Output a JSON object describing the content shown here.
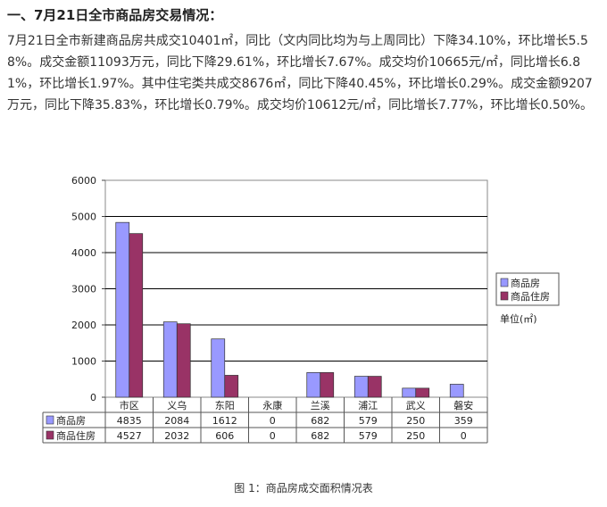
{
  "section": {
    "heading": "一、7月21日全市商品房交易情况：",
    "paragraph": "7月21日全市新建商品房共成交10401㎡，同比（文内同比均为与上周同比）下降34.10%，环比增长5.58%。成交金额11093万元，同比下降29.61%，环比增长7.67%。成交均价10665元/㎡，同比增长6.81%，环比增长1.97%。其中住宅类共成交8676㎡，同比下降40.45%，环比增长0.29%。成交金额9207万元，同比下降35.83%，环比增长0.79%。成交均价10612元/㎡，同比增长7.77%，环比增长0.50%。"
  },
  "chart_data": {
    "type": "bar",
    "categories": [
      "市区",
      "义乌",
      "东阳",
      "永康",
      "兰溪",
      "浦江",
      "武义",
      "磐安"
    ],
    "series": [
      {
        "name": "商品房",
        "values": [
          4835,
          2084,
          1612,
          0,
          682,
          579,
          250,
          359
        ],
        "color": "#9999ff"
      },
      {
        "name": "商品住房",
        "values": [
          4527,
          2032,
          606,
          0,
          682,
          579,
          250,
          0
        ],
        "color": "#993366"
      }
    ],
    "ylim": [
      0,
      6000
    ],
    "yticks": [
      0,
      1000,
      2000,
      3000,
      4000,
      5000,
      6000
    ],
    "unit_label": "单位(㎡)",
    "grid": true,
    "legend_position": "right",
    "data_table": true
  },
  "caption": "图 1：商品房成交面积情况表"
}
